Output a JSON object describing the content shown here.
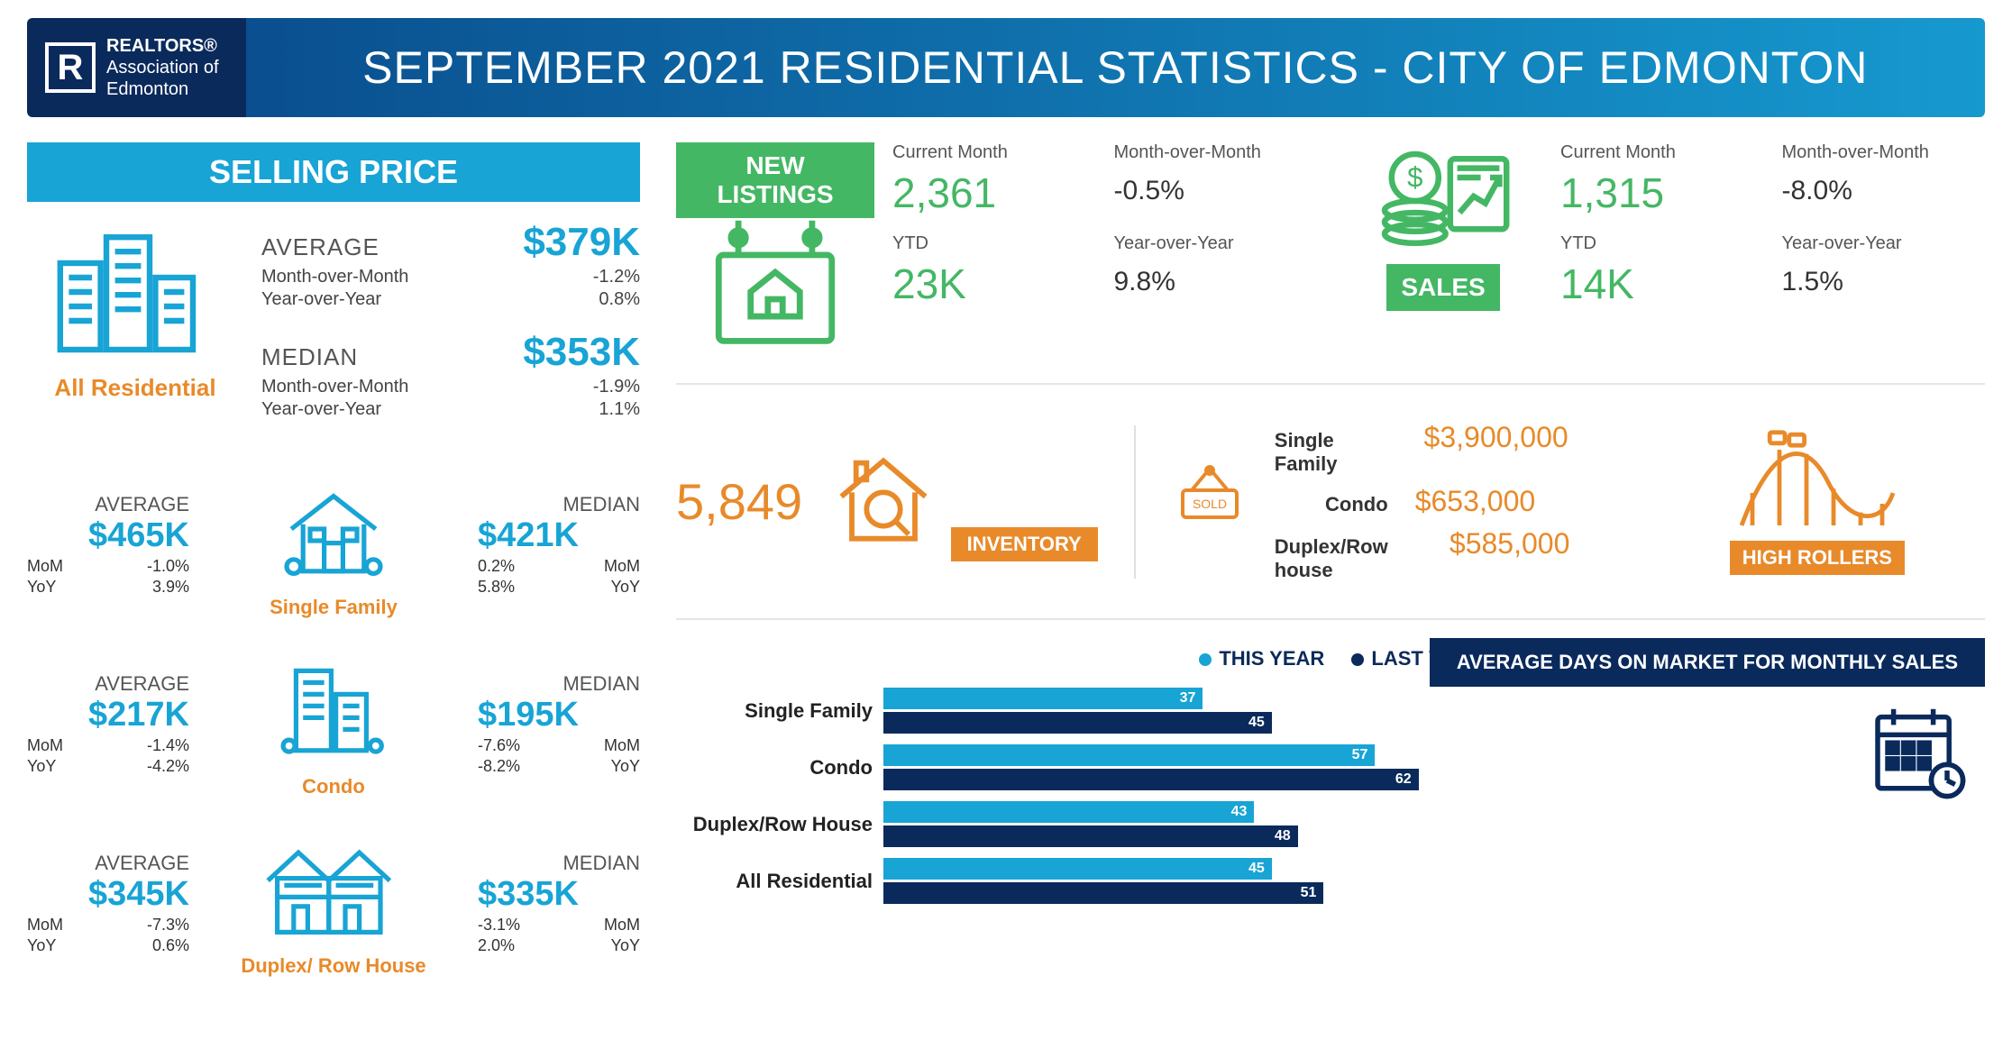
{
  "header": {
    "org_line1": "REALTORS®",
    "org_line2": "Association of",
    "org_line3": "Edmonton",
    "title": "SEPTEMBER 2021 RESIDENTIAL STATISTICS - CITY OF EDMONTON"
  },
  "colors": {
    "blue": "#18a4d5",
    "navy": "#0a2a5c",
    "green": "#44b764",
    "orange": "#e88a2a",
    "bar_this": "#18a4d5",
    "bar_last": "#0a2a5c"
  },
  "selling_price": {
    "section_title": "SELLING PRICE",
    "all_residential": {
      "label": "All Residential",
      "average": {
        "label": "AVERAGE",
        "value": "$379K",
        "mom_label": "Month-over-Month",
        "mom": "-1.2%",
        "yoy_label": "Year-over-Year",
        "yoy": "0.8%"
      },
      "median": {
        "label": "MEDIAN",
        "value": "$353K",
        "mom_label": "Month-over-Month",
        "mom": "-1.9%",
        "yoy_label": "Year-over-Year",
        "yoy": "1.1%"
      }
    },
    "types": [
      {
        "name": "Single Family",
        "avg_label": "AVERAGE",
        "avg": "$465K",
        "avg_mom_k": "MoM",
        "avg_mom": "-1.0%",
        "avg_yoy_k": "YoY",
        "avg_yoy": "3.9%",
        "med_label": "MEDIAN",
        "med": "$421K",
        "med_mom_k": "MoM",
        "med_mom": "0.2%",
        "med_yoy_k": "YoY",
        "med_yoy": "5.8%"
      },
      {
        "name": "Condo",
        "avg_label": "AVERAGE",
        "avg": "$217K",
        "avg_mom_k": "MoM",
        "avg_mom": "-1.4%",
        "avg_yoy_k": "YoY",
        "avg_yoy": "-4.2%",
        "med_label": "MEDIAN",
        "med": "$195K",
        "med_mom_k": "MoM",
        "med_mom": "-7.6%",
        "med_yoy_k": "YoY",
        "med_yoy": "-8.2%"
      },
      {
        "name": "Duplex/ Row House",
        "avg_label": "AVERAGE",
        "avg": "$345K",
        "avg_mom_k": "MoM",
        "avg_mom": "-7.3%",
        "avg_yoy_k": "YoY",
        "avg_yoy": "0.6%",
        "med_label": "MEDIAN",
        "med": "$335K",
        "med_mom_k": "MoM",
        "med_mom": "-3.1%",
        "med_yoy_k": "YoY",
        "med_yoy": "2.0%"
      }
    ]
  },
  "new_listings": {
    "badge": "NEW  LISTINGS",
    "current_label": "Current Month",
    "current": "2,361",
    "mom_label": "Month-over-Month",
    "mom": "-0.5%",
    "ytd_label": "YTD",
    "ytd": "23K",
    "yoy_label": "Year-over-Year",
    "yoy": "9.8%"
  },
  "sales": {
    "badge": "SALES",
    "current_label": "Current Month",
    "current": "1,315",
    "mom_label": "Month-over-Month",
    "mom": "-8.0%",
    "ytd_label": "YTD",
    "ytd": "14K",
    "yoy_label": "Year-over-Year",
    "yoy": "1.5%"
  },
  "inventory": {
    "value": "5,849",
    "label": "INVENTORY"
  },
  "high_rollers": {
    "label": "HIGH ROLLERS",
    "sold_tag": "SOLD",
    "rows": [
      {
        "k": "Single Family",
        "v": "$3,900,000"
      },
      {
        "k": "Condo",
        "v": "$653,000"
      },
      {
        "k": "Duplex/Row house",
        "v": "$585,000"
      }
    ]
  },
  "dom_chart": {
    "title": "AVERAGE DAYS ON MARKET FOR MONTHLY SALES",
    "legend_this": "THIS YEAR",
    "legend_last": "LAST YEAR",
    "max": 70,
    "categories": [
      {
        "name": "Single Family",
        "this": 37,
        "last": 45
      },
      {
        "name": "Condo",
        "this": 57,
        "last": 62
      },
      {
        "name": "Duplex/Row House",
        "this": 43,
        "last": 48
      },
      {
        "name": "All Residential",
        "this": 45,
        "last": 51
      }
    ]
  }
}
